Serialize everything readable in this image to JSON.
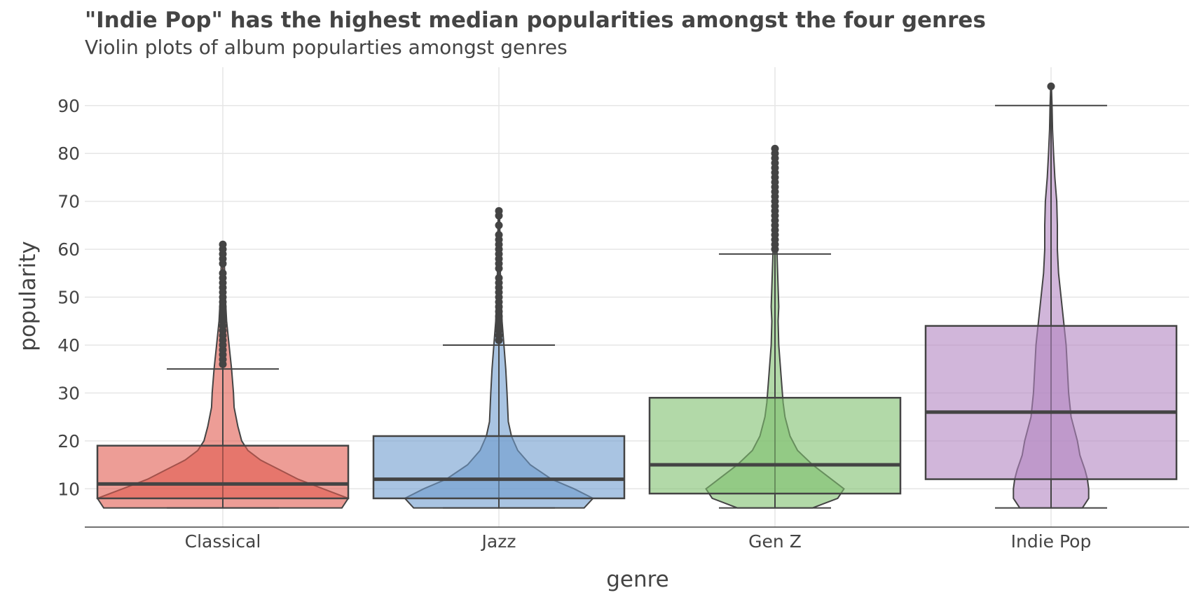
{
  "chart_data": {
    "type": "violin",
    "title": "\"Indie Pop\" has the highest median popularities amongst the four genres",
    "subtitle": "Violin plots of album popularties amongst genres",
    "xlabel": "genre",
    "ylabel": "popularity",
    "ylim": [
      2,
      98
    ],
    "yticks": [
      10,
      20,
      30,
      40,
      50,
      60,
      70,
      80,
      90
    ],
    "grid": true,
    "legend": "none",
    "categories": [
      "Classical",
      "Jazz",
      "Gen Z",
      "Indie Pop"
    ],
    "series": [
      {
        "category": "Classical",
        "color": "#e15b50",
        "box": {
          "min": 6,
          "q1": 8,
          "median": 11,
          "q3": 19,
          "whisker_high": 35
        },
        "outliers": [
          36,
          37,
          38,
          39,
          40,
          41,
          42,
          43,
          44,
          45,
          46,
          47,
          48,
          49,
          50,
          51,
          52,
          53,
          54,
          55,
          57,
          58,
          59,
          60,
          61
        ],
        "violin_max": 61,
        "violin": [
          [
            6,
            0.95
          ],
          [
            8,
            1.0
          ],
          [
            10,
            0.8
          ],
          [
            12,
            0.6
          ],
          [
            14,
            0.45
          ],
          [
            16,
            0.3
          ],
          [
            18,
            0.2
          ],
          [
            20,
            0.15
          ],
          [
            23,
            0.12
          ],
          [
            27,
            0.09
          ],
          [
            30,
            0.085
          ],
          [
            35,
            0.07
          ],
          [
            40,
            0.05
          ],
          [
            45,
            0.03
          ],
          [
            50,
            0.02
          ],
          [
            55,
            0.015
          ],
          [
            61,
            0.005
          ]
        ]
      },
      {
        "category": "Jazz",
        "color": "#6f9dcf",
        "box": {
          "min": 6,
          "q1": 8,
          "median": 12,
          "q3": 21,
          "whisker_high": 40
        },
        "outliers": [
          41,
          42,
          43,
          44,
          45,
          46,
          47,
          48,
          49,
          50,
          51,
          52,
          53,
          54,
          56,
          57,
          58,
          59,
          60,
          61,
          62,
          63,
          65,
          67,
          68
        ],
        "violin_max": 68,
        "violin": [
          [
            6,
            0.68
          ],
          [
            8,
            0.75
          ],
          [
            10,
            0.6
          ],
          [
            12,
            0.42
          ],
          [
            15,
            0.25
          ],
          [
            18,
            0.15
          ],
          [
            21,
            0.1
          ],
          [
            24,
            0.075
          ],
          [
            27,
            0.07
          ],
          [
            30,
            0.065
          ],
          [
            35,
            0.055
          ],
          [
            40,
            0.04
          ],
          [
            45,
            0.025
          ],
          [
            50,
            0.018
          ],
          [
            55,
            0.012
          ],
          [
            60,
            0.01
          ],
          [
            68,
            0.005
          ]
        ]
      },
      {
        "category": "Gen Z",
        "color": "#7fbf6e",
        "box": {
          "min": 6,
          "q1": 9,
          "median": 15,
          "q3": 29,
          "whisker_high": 59
        },
        "outliers": [
          60,
          61,
          62,
          63,
          64,
          65,
          66,
          67,
          68,
          69,
          70,
          71,
          72,
          73,
          74,
          75,
          76,
          77,
          78,
          79,
          80,
          81
        ],
        "violin_max": 81,
        "violin": [
          [
            6,
            0.3
          ],
          [
            8,
            0.5
          ],
          [
            10,
            0.55
          ],
          [
            12,
            0.45
          ],
          [
            15,
            0.3
          ],
          [
            18,
            0.18
          ],
          [
            21,
            0.12
          ],
          [
            25,
            0.08
          ],
          [
            28,
            0.065
          ],
          [
            33,
            0.05
          ],
          [
            40,
            0.03
          ],
          [
            45,
            0.025
          ],
          [
            48,
            0.03
          ],
          [
            52,
            0.025
          ],
          [
            56,
            0.02
          ],
          [
            60,
            0.015
          ],
          [
            65,
            0.008
          ],
          [
            70,
            0.005
          ],
          [
            81,
            0.002
          ]
        ]
      },
      {
        "category": "Indie Pop",
        "color": "#b385c2",
        "box": {
          "min": 6,
          "q1": 12,
          "median": 26,
          "q3": 44,
          "whisker_high": 90
        },
        "outliers": [
          94
        ],
        "violin_max": 94,
        "violin": [
          [
            6,
            0.25
          ],
          [
            8,
            0.3
          ],
          [
            10,
            0.3
          ],
          [
            12,
            0.29
          ],
          [
            14,
            0.27
          ],
          [
            17,
            0.23
          ],
          [
            20,
            0.21
          ],
          [
            25,
            0.16
          ],
          [
            30,
            0.14
          ],
          [
            35,
            0.13
          ],
          [
            40,
            0.12
          ],
          [
            45,
            0.1
          ],
          [
            50,
            0.08
          ],
          [
            55,
            0.06
          ],
          [
            60,
            0.05
          ],
          [
            65,
            0.05
          ],
          [
            70,
            0.045
          ],
          [
            75,
            0.03
          ],
          [
            80,
            0.02
          ],
          [
            85,
            0.012
          ],
          [
            90,
            0.008
          ],
          [
            94,
            0.003
          ]
        ]
      }
    ]
  }
}
